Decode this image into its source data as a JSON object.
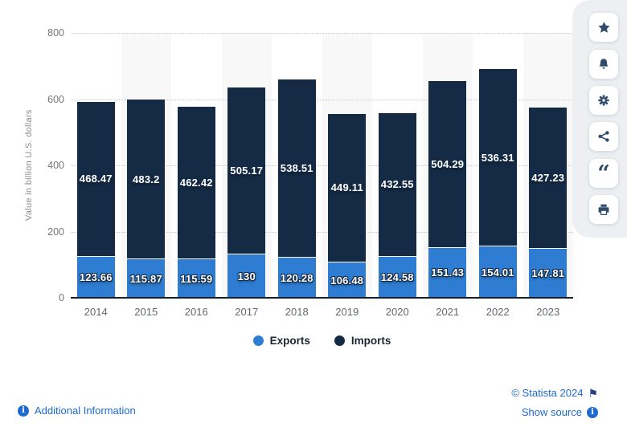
{
  "chart_data": {
    "type": "bar",
    "stacked": true,
    "title": "",
    "ylabel": "Value in billion U.S. dollars",
    "categories": [
      "2014",
      "2015",
      "2016",
      "2017",
      "2018",
      "2019",
      "2020",
      "2021",
      "2022",
      "2023"
    ],
    "series": [
      {
        "name": "Exports",
        "color": "#2e7dd2",
        "values": [
          123.66,
          115.87,
          115.59,
          130,
          120.28,
          106.48,
          124.58,
          151.43,
          154.01,
          147.81
        ],
        "labels": [
          "123.66",
          "115.87",
          "115.59",
          "130",
          "120.28",
          "106.48",
          "124.58",
          "151.43",
          "154.01",
          "147.81"
        ]
      },
      {
        "name": "Imports",
        "color": "#152b45",
        "values": [
          468.47,
          483.2,
          462.42,
          505.17,
          538.51,
          449.11,
          432.55,
          504.29,
          536.31,
          427.23
        ],
        "labels": [
          "468.47",
          "483.2",
          "462.42",
          "505.17",
          "538.51",
          "449.11",
          "432.55",
          "504.29",
          "536.31",
          "427.23"
        ]
      }
    ],
    "ylim": [
      0,
      800
    ],
    "yticks": [
      0,
      200,
      400,
      600,
      800
    ],
    "grid": "horizontal-dotted",
    "legend_position": "bottom",
    "alternating_column_bands": true
  },
  "colors": {
    "exports": "#2e7dd2",
    "imports": "#152b45",
    "link_blue": "#1e6ad1",
    "toolbar_icon": "#2f4c6e",
    "axis_line": "#131f2b",
    "column_band": "#f8f8f9",
    "sidebar_background": "#edeff2"
  },
  "sidebar": {
    "buttons": [
      {
        "icon": "star-icon"
      },
      {
        "icon": "bell-icon"
      },
      {
        "icon": "gear-icon"
      },
      {
        "icon": "share-icon"
      },
      {
        "icon": "quote-icon",
        "glyph": "“"
      },
      {
        "icon": "printer-icon"
      }
    ]
  },
  "footer": {
    "additional_information": "Additional Information",
    "copyright": "© Statista 2024",
    "show_source": "Show source",
    "flag_icon": "⚑",
    "info_icon_glyph": "i"
  }
}
